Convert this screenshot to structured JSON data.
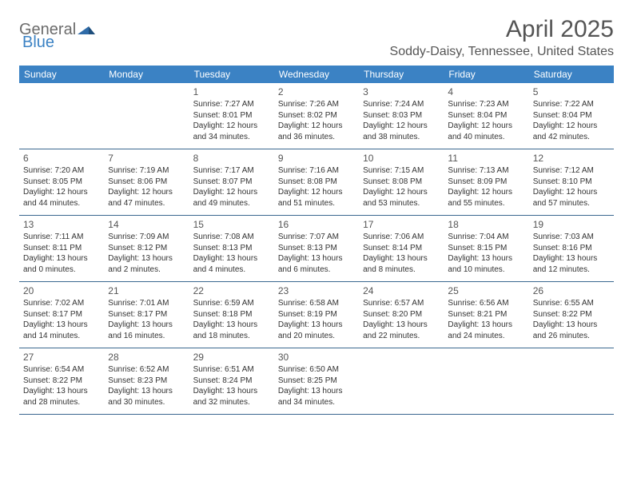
{
  "logo": {
    "general": "General",
    "blue": "Blue"
  },
  "title": "April 2025",
  "location": "Soddy-Daisy, Tennessee, United States",
  "colors": {
    "header_bg": "#3b82c4",
    "header_text": "#ffffff",
    "row_border": "#3b6890",
    "text": "#333333",
    "title_text": "#555555"
  },
  "dayLabels": [
    "Sunday",
    "Monday",
    "Tuesday",
    "Wednesday",
    "Thursday",
    "Friday",
    "Saturday"
  ],
  "weeks": [
    [
      null,
      null,
      {
        "d": "1",
        "sunrise": "Sunrise: 7:27 AM",
        "sunset": "Sunset: 8:01 PM",
        "daylight": "Daylight: 12 hours and 34 minutes."
      },
      {
        "d": "2",
        "sunrise": "Sunrise: 7:26 AM",
        "sunset": "Sunset: 8:02 PM",
        "daylight": "Daylight: 12 hours and 36 minutes."
      },
      {
        "d": "3",
        "sunrise": "Sunrise: 7:24 AM",
        "sunset": "Sunset: 8:03 PM",
        "daylight": "Daylight: 12 hours and 38 minutes."
      },
      {
        "d": "4",
        "sunrise": "Sunrise: 7:23 AM",
        "sunset": "Sunset: 8:04 PM",
        "daylight": "Daylight: 12 hours and 40 minutes."
      },
      {
        "d": "5",
        "sunrise": "Sunrise: 7:22 AM",
        "sunset": "Sunset: 8:04 PM",
        "daylight": "Daylight: 12 hours and 42 minutes."
      }
    ],
    [
      {
        "d": "6",
        "sunrise": "Sunrise: 7:20 AM",
        "sunset": "Sunset: 8:05 PM",
        "daylight": "Daylight: 12 hours and 44 minutes."
      },
      {
        "d": "7",
        "sunrise": "Sunrise: 7:19 AM",
        "sunset": "Sunset: 8:06 PM",
        "daylight": "Daylight: 12 hours and 47 minutes."
      },
      {
        "d": "8",
        "sunrise": "Sunrise: 7:17 AM",
        "sunset": "Sunset: 8:07 PM",
        "daylight": "Daylight: 12 hours and 49 minutes."
      },
      {
        "d": "9",
        "sunrise": "Sunrise: 7:16 AM",
        "sunset": "Sunset: 8:08 PM",
        "daylight": "Daylight: 12 hours and 51 minutes."
      },
      {
        "d": "10",
        "sunrise": "Sunrise: 7:15 AM",
        "sunset": "Sunset: 8:08 PM",
        "daylight": "Daylight: 12 hours and 53 minutes."
      },
      {
        "d": "11",
        "sunrise": "Sunrise: 7:13 AM",
        "sunset": "Sunset: 8:09 PM",
        "daylight": "Daylight: 12 hours and 55 minutes."
      },
      {
        "d": "12",
        "sunrise": "Sunrise: 7:12 AM",
        "sunset": "Sunset: 8:10 PM",
        "daylight": "Daylight: 12 hours and 57 minutes."
      }
    ],
    [
      {
        "d": "13",
        "sunrise": "Sunrise: 7:11 AM",
        "sunset": "Sunset: 8:11 PM",
        "daylight": "Daylight: 13 hours and 0 minutes."
      },
      {
        "d": "14",
        "sunrise": "Sunrise: 7:09 AM",
        "sunset": "Sunset: 8:12 PM",
        "daylight": "Daylight: 13 hours and 2 minutes."
      },
      {
        "d": "15",
        "sunrise": "Sunrise: 7:08 AM",
        "sunset": "Sunset: 8:13 PM",
        "daylight": "Daylight: 13 hours and 4 minutes."
      },
      {
        "d": "16",
        "sunrise": "Sunrise: 7:07 AM",
        "sunset": "Sunset: 8:13 PM",
        "daylight": "Daylight: 13 hours and 6 minutes."
      },
      {
        "d": "17",
        "sunrise": "Sunrise: 7:06 AM",
        "sunset": "Sunset: 8:14 PM",
        "daylight": "Daylight: 13 hours and 8 minutes."
      },
      {
        "d": "18",
        "sunrise": "Sunrise: 7:04 AM",
        "sunset": "Sunset: 8:15 PM",
        "daylight": "Daylight: 13 hours and 10 minutes."
      },
      {
        "d": "19",
        "sunrise": "Sunrise: 7:03 AM",
        "sunset": "Sunset: 8:16 PM",
        "daylight": "Daylight: 13 hours and 12 minutes."
      }
    ],
    [
      {
        "d": "20",
        "sunrise": "Sunrise: 7:02 AM",
        "sunset": "Sunset: 8:17 PM",
        "daylight": "Daylight: 13 hours and 14 minutes."
      },
      {
        "d": "21",
        "sunrise": "Sunrise: 7:01 AM",
        "sunset": "Sunset: 8:17 PM",
        "daylight": "Daylight: 13 hours and 16 minutes."
      },
      {
        "d": "22",
        "sunrise": "Sunrise: 6:59 AM",
        "sunset": "Sunset: 8:18 PM",
        "daylight": "Daylight: 13 hours and 18 minutes."
      },
      {
        "d": "23",
        "sunrise": "Sunrise: 6:58 AM",
        "sunset": "Sunset: 8:19 PM",
        "daylight": "Daylight: 13 hours and 20 minutes."
      },
      {
        "d": "24",
        "sunrise": "Sunrise: 6:57 AM",
        "sunset": "Sunset: 8:20 PM",
        "daylight": "Daylight: 13 hours and 22 minutes."
      },
      {
        "d": "25",
        "sunrise": "Sunrise: 6:56 AM",
        "sunset": "Sunset: 8:21 PM",
        "daylight": "Daylight: 13 hours and 24 minutes."
      },
      {
        "d": "26",
        "sunrise": "Sunrise: 6:55 AM",
        "sunset": "Sunset: 8:22 PM",
        "daylight": "Daylight: 13 hours and 26 minutes."
      }
    ],
    [
      {
        "d": "27",
        "sunrise": "Sunrise: 6:54 AM",
        "sunset": "Sunset: 8:22 PM",
        "daylight": "Daylight: 13 hours and 28 minutes."
      },
      {
        "d": "28",
        "sunrise": "Sunrise: 6:52 AM",
        "sunset": "Sunset: 8:23 PM",
        "daylight": "Daylight: 13 hours and 30 minutes."
      },
      {
        "d": "29",
        "sunrise": "Sunrise: 6:51 AM",
        "sunset": "Sunset: 8:24 PM",
        "daylight": "Daylight: 13 hours and 32 minutes."
      },
      {
        "d": "30",
        "sunrise": "Sunrise: 6:50 AM",
        "sunset": "Sunset: 8:25 PM",
        "daylight": "Daylight: 13 hours and 34 minutes."
      },
      null,
      null,
      null
    ]
  ]
}
